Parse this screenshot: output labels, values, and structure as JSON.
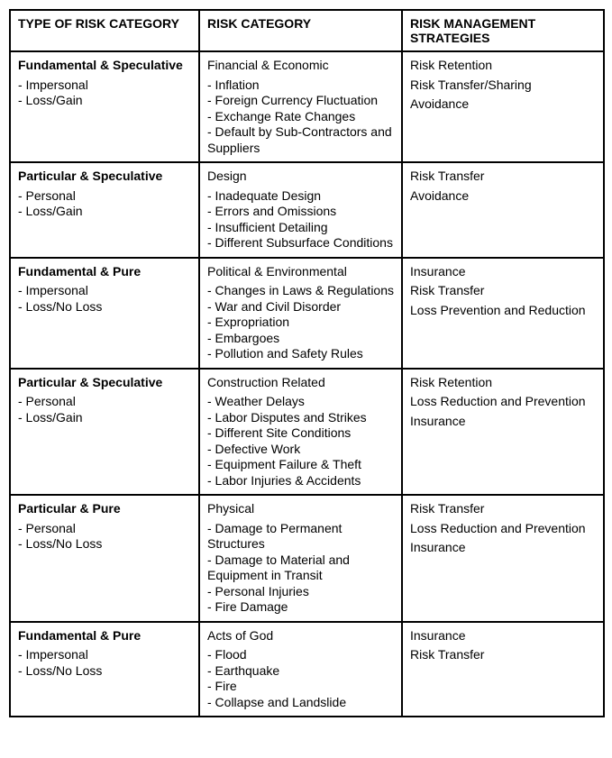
{
  "headers": {
    "c1": "TYPE OF RISK CATEGORY",
    "c2": "RISK CATEGORY",
    "c3": "RISK MANAGEMENT STRATEGIES"
  },
  "rows": [
    {
      "c1_title": "Fundamental & Speculative",
      "c1_items": [
        "- Impersonal",
        "- Loss/Gain"
      ],
      "c2_title": "Financial & Economic",
      "c2_items": [
        "- Inflation",
        "- Foreign Currency Fluctuation",
        "- Exchange Rate Changes",
        "- Default by Sub-Contractors and Suppliers"
      ],
      "c3_items": [
        "Risk Retention",
        "Risk Transfer/Sharing",
        "Avoidance"
      ]
    },
    {
      "c1_title": "Particular & Speculative",
      "c1_items": [
        "- Personal",
        "- Loss/Gain"
      ],
      "c2_title": "Design",
      "c2_items": [
        "- Inadequate Design",
        "- Errors and Omissions",
        "- Insufficient Detailing",
        "- Different Subsurface Conditions"
      ],
      "c3_items": [
        "Risk Transfer",
        "Avoidance"
      ]
    },
    {
      "c1_title": "Fundamental & Pure",
      "c1_items": [
        "- Impersonal",
        "- Loss/No Loss"
      ],
      "c2_title": "Political & Environmental",
      "c2_items": [
        "- Changes in Laws & Regulations",
        "- War and Civil Disorder",
        "- Expropriation",
        "- Embargoes",
        "- Pollution and Safety Rules"
      ],
      "c3_items": [
        "Insurance",
        "Risk Transfer",
        "Loss Prevention and Reduction"
      ]
    },
    {
      "c1_title": "Particular & Speculative",
      "c1_items": [
        "- Personal",
        "- Loss/Gain"
      ],
      "c2_title": "Construction Related",
      "c2_items": [
        "- Weather Delays",
        "- Labor Disputes and Strikes",
        "- Different Site Conditions",
        "- Defective Work",
        "- Equipment Failure & Theft",
        "- Labor Injuries & Accidents"
      ],
      "c3_items": [
        "Risk Retention",
        "Loss Reduction and Prevention",
        "Insurance"
      ]
    },
    {
      "c1_title": "Particular & Pure",
      "c1_items": [
        "- Personal",
        "- Loss/No Loss"
      ],
      "c2_title": "Physical",
      "c2_items": [
        "- Damage to Permanent Structures",
        "- Damage to Material and Equipment in Transit",
        "- Personal Injuries",
        "- Fire Damage"
      ],
      "c3_items": [
        "Risk Transfer",
        "Loss Reduction and Prevention",
        "Insurance"
      ]
    },
    {
      "c1_title": "Fundamental & Pure",
      "c1_items": [
        "- Impersonal",
        "- Loss/No Loss"
      ],
      "c2_title": "Acts of God",
      "c2_items": [
        "- Flood",
        "- Earthquake",
        "- Fire",
        "- Collapse and Landslide"
      ],
      "c3_items": [
        "Insurance",
        "Risk Transfer"
      ]
    }
  ]
}
